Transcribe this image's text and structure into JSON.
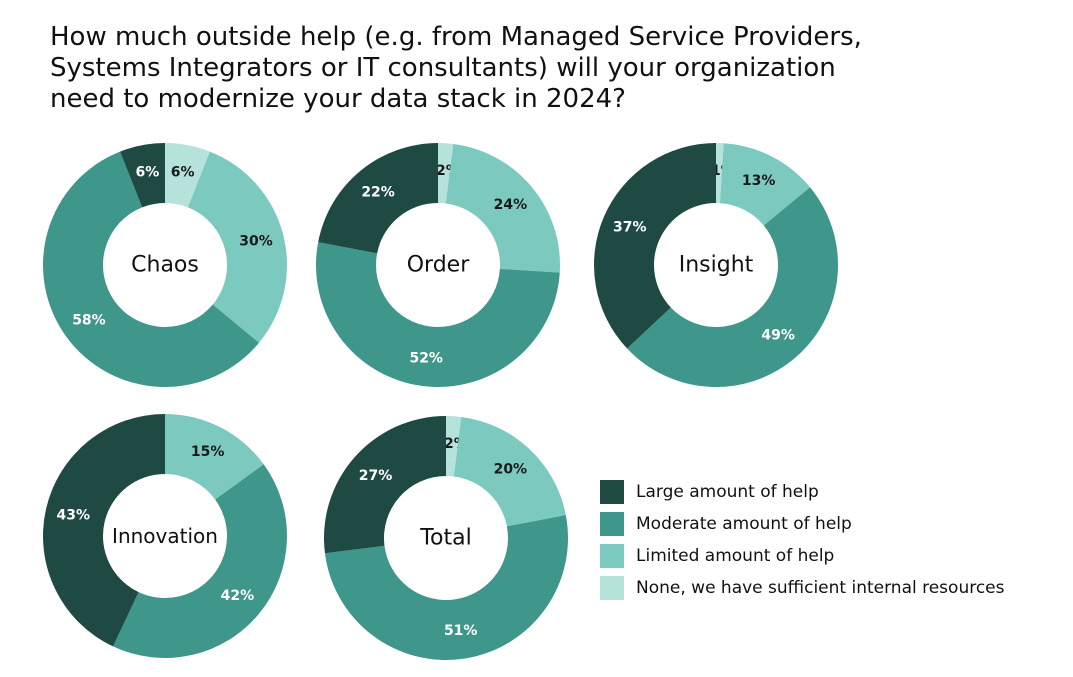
{
  "title_lines": [
    "How much outside help (e.g. from Managed Service Providers,",
    "Systems Integrators or IT consultants) will your organization",
    "need to modernize your data stack in 2024?"
  ],
  "chart_data": {
    "type": "donut",
    "title": "How much outside help (e.g. from Managed Service Providers, Systems Integrators or IT consultants) will your organization need to modernize your data stack in 2024?",
    "categories": [
      "Large amount of help",
      "Moderate amount of help",
      "Limited amount of help",
      "None, we have sufficient internal resources"
    ],
    "colors": [
      "#1e4a43",
      "#3f968b",
      "#7ccabf",
      "#b5e2db"
    ],
    "legend_position": "bottom-right",
    "charts": [
      {
        "name": "Chaos",
        "values": [
          6,
          58,
          30,
          6
        ]
      },
      {
        "name": "Order",
        "values": [
          22,
          52,
          24,
          2
        ]
      },
      {
        "name": "Insight",
        "values": [
          37,
          49,
          13,
          1
        ]
      },
      {
        "name": "Innovation",
        "values": [
          43,
          42,
          15,
          0
        ]
      },
      {
        "name": "Total",
        "values": [
          27,
          51,
          20,
          2
        ]
      }
    ]
  }
}
